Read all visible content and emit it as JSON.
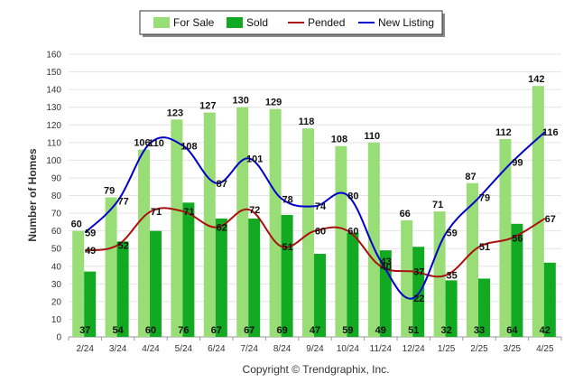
{
  "chart_data": {
    "type": "bar",
    "ylabel": "Number of Homes",
    "ylim": [
      0,
      160
    ],
    "yticks": [
      0,
      10,
      20,
      30,
      40,
      50,
      60,
      70,
      80,
      90,
      100,
      110,
      120,
      130,
      140,
      150,
      160
    ],
    "categories": [
      "2/24",
      "3/24",
      "4/24",
      "5/24",
      "6/24",
      "7/24",
      "8/24",
      "9/24",
      "10/24",
      "11/24",
      "12/24",
      "1/25",
      "2/25",
      "3/25",
      "4/25"
    ],
    "series": [
      {
        "name": "For Sale",
        "kind": "bar",
        "color": "#99dd77",
        "values": [
          60,
          79,
          106,
          123,
          127,
          130,
          129,
          118,
          108,
          110,
          66,
          71,
          87,
          112,
          142
        ]
      },
      {
        "name": "Sold",
        "kind": "bar",
        "color": "#11aa22",
        "values": [
          37,
          54,
          60,
          76,
          67,
          67,
          69,
          47,
          59,
          49,
          51,
          32,
          33,
          64,
          42
        ]
      },
      {
        "name": "Pended",
        "kind": "line",
        "color": "#aa1111",
        "values": [
          49,
          52,
          71,
          71,
          62,
          72,
          51,
          60,
          60,
          40,
          37,
          35,
          51,
          56,
          67
        ]
      },
      {
        "name": "New Listing",
        "kind": "line",
        "color": "#0000cc",
        "values": [
          59,
          77,
          110,
          108,
          87,
          101,
          78,
          74,
          80,
          43,
          22,
          59,
          79,
          99,
          116
        ]
      }
    ],
    "legend_position": "top-center",
    "grid": true
  },
  "credit": "Copyright © Trendgraphix, Inc."
}
